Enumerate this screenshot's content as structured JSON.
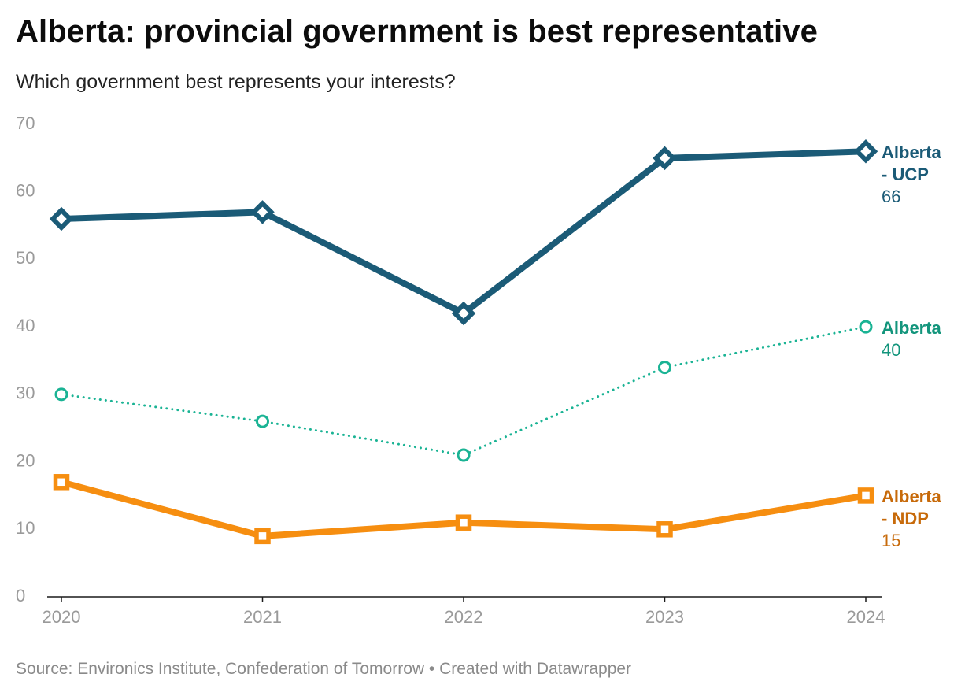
{
  "title": "Alberta: provincial government is best representative",
  "subtitle": "Which government best represents your interests?",
  "footer": {
    "source": "Source: Environics Institute, Confederation of Tomorrow",
    "separator": "•",
    "credit": "Created with Datawrapper"
  },
  "chart_data": {
    "type": "line",
    "title": "Alberta: provincial government is best representative",
    "subtitle": "Which government best represents your interests?",
    "x": [
      "2020",
      "2021",
      "2022",
      "2023",
      "2024"
    ],
    "xlabel": "",
    "ylabel": "",
    "ylim": [
      0,
      70
    ],
    "yticks": [
      0,
      10,
      20,
      30,
      40,
      50,
      60,
      70
    ],
    "grid": false,
    "series": [
      {
        "name_lines": [
          "Alberta",
          "- UCP"
        ],
        "values": [
          56,
          57,
          42,
          65,
          66
        ],
        "last_value_label": "66",
        "color": "#1b5b77",
        "line_style": "solid-thick",
        "marker": "diamond"
      },
      {
        "name_lines": [
          "Alberta"
        ],
        "values": [
          30,
          26,
          21,
          34,
          40
        ],
        "last_value_label": "40",
        "color": "#1ab394",
        "label_color": "#13957c",
        "line_style": "dotted",
        "marker": "circle"
      },
      {
        "name_lines": [
          "Alberta",
          "- NDP"
        ],
        "values": [
          17,
          9,
          11,
          10,
          15
        ],
        "last_value_label": "15",
        "color": "#f68e10",
        "label_color": "#c76a0a",
        "line_style": "solid-thick",
        "marker": "square"
      }
    ]
  }
}
